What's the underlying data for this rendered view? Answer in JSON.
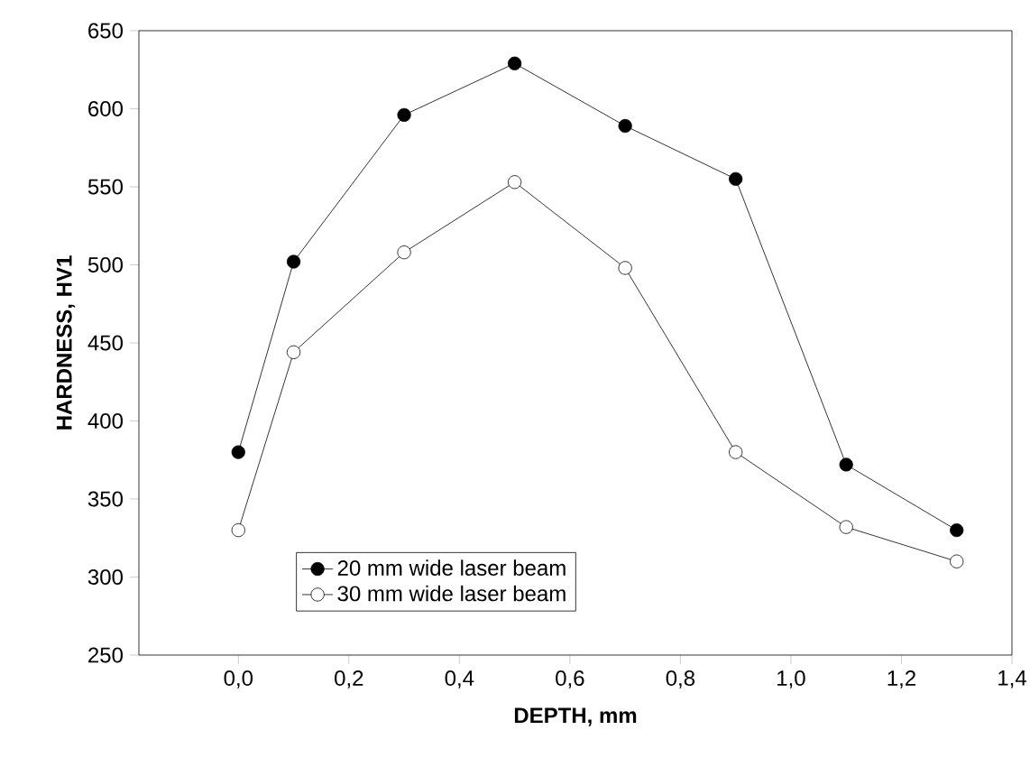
{
  "chart_data": {
    "type": "line",
    "xlabel": "DEPTH, mm",
    "ylabel": "HARDNESS, HV1",
    "x": [
      0.0,
      0.1,
      0.3,
      0.5,
      0.7,
      0.9,
      1.1,
      1.3
    ],
    "series": [
      {
        "name": "20 mm wide laser beam",
        "color": "#000000",
        "values": [
          380,
          502,
          596,
          629,
          589,
          555,
          372,
          330
        ]
      },
      {
        "name": "30 mm wide laser beam",
        "color": "#ffffff",
        "values": [
          330,
          444,
          508,
          553,
          498,
          380,
          332,
          310
        ]
      }
    ],
    "xlim": [
      -0.18,
      1.4
    ],
    "xticks": [
      {
        "value": 0.0,
        "label": "0,0"
      },
      {
        "value": 0.2,
        "label": "0,2"
      },
      {
        "value": 0.4,
        "label": "0,4"
      },
      {
        "value": 0.6,
        "label": "0,6"
      },
      {
        "value": 0.8,
        "label": "0,8"
      },
      {
        "value": 1.0,
        "label": "1,0"
      },
      {
        "value": 1.2,
        "label": "1,2"
      },
      {
        "value": 1.4,
        "label": "1,4"
      }
    ],
    "ylim": [
      250,
      650
    ],
    "yticks": [
      250,
      300,
      350,
      400,
      450,
      500,
      550,
      600,
      650
    ],
    "grid": false,
    "legend": "bottom left",
    "marker": "circle",
    "line_style": "solid"
  }
}
